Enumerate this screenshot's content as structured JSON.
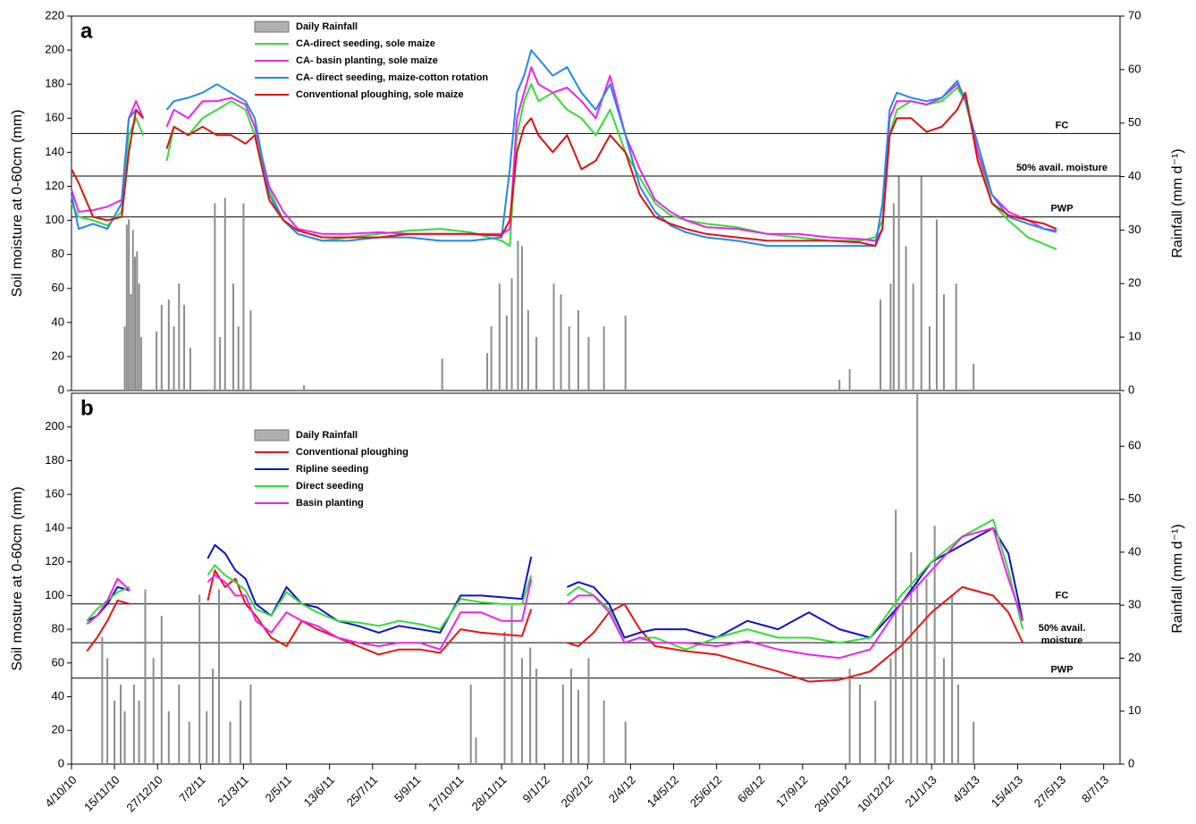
{
  "chart_data": [
    {
      "type": "line",
      "panel_label": "a",
      "ylabel": "Soil moisture at 0-60cm (mm)",
      "y2label": "Rainfall (mm d⁻¹)",
      "xlim": [
        0,
        1024
      ],
      "ylim": [
        0,
        220
      ],
      "yticks": [
        0,
        20,
        40,
        60,
        80,
        100,
        120,
        140,
        160,
        180,
        200,
        220
      ],
      "y2lim": [
        0,
        70
      ],
      "y2ticks": [
        0,
        10,
        20,
        30,
        40,
        50,
        60,
        70
      ],
      "hlines": [
        {
          "value": 151,
          "label": "FC"
        },
        {
          "value": 126,
          "label": "50% avail. moisture"
        },
        {
          "value": 102,
          "label": "PWP"
        }
      ],
      "x": [
        0,
        7,
        21,
        35,
        49,
        56,
        63,
        70,
        82,
        93,
        100,
        114,
        128,
        142,
        156,
        170,
        179,
        193,
        207,
        221,
        245,
        270,
        300,
        330,
        360,
        390,
        420,
        428,
        435,
        442,
        449,
        456,
        470,
        484,
        498,
        512,
        526,
        541,
        555,
        570,
        585,
        600,
        620,
        650,
        680,
        710,
        740,
        770,
        785,
        792,
        799,
        806,
        820,
        835,
        850,
        865,
        873,
        885,
        899,
        915,
        934,
        950,
        962
      ],
      "series": [
        {
          "name": "Daily Rainfall",
          "type": "bar",
          "axis": "y2",
          "color": "#8c8c8c",
          "x": [
            52,
            54,
            56,
            58,
            60,
            62,
            64,
            66,
            68,
            83,
            88,
            95,
            100,
            105,
            110,
            116,
            140,
            145,
            150,
            158,
            163,
            168,
            175,
            227,
            362,
            406,
            410,
            418,
            425,
            430,
            436,
            440,
            446,
            454,
            471,
            478,
            486,
            495,
            505,
            520,
            541,
            750,
            760,
            790,
            800,
            803,
            808,
            815,
            822,
            830,
            838,
            845,
            852,
            864,
            881
          ],
          "values": [
            12,
            31,
            32,
            18,
            30,
            25,
            26,
            20,
            10,
            11,
            16,
            17,
            12,
            20,
            16,
            8,
            35,
            10,
            36,
            20,
            12,
            35,
            15,
            1,
            6,
            7,
            12,
            20,
            14,
            21,
            28,
            27,
            15,
            10,
            20,
            18,
            12,
            15,
            10,
            12,
            14,
            2,
            4,
            17,
            20,
            35,
            40,
            27,
            20,
            40,
            12,
            32,
            18,
            20,
            5
          ]
        },
        {
          "name": "CA-direct seeding, sole maize",
          "color": "#33dd33",
          "values": [
            110,
            102,
            100,
            97,
            105,
            150,
            160,
            150,
            null,
            135,
            155,
            150,
            160,
            165,
            170,
            165,
            150,
            118,
            100,
            92,
            88,
            90,
            92,
            94,
            95,
            93,
            88,
            85,
            150,
            170,
            180,
            170,
            175,
            165,
            160,
            150,
            165,
            140,
            125,
            110,
            103,
            100,
            98,
            96,
            92,
            90,
            88,
            88,
            90,
            100,
            150,
            165,
            170,
            168,
            170,
            178,
            170,
            140,
            110,
            100,
            90,
            86,
            83
          ]
        },
        {
          "name": "CA- basin planting, sole maize",
          "color": "#ee22ee",
          "values": [
            118,
            105,
            106,
            108,
            112,
            160,
            170,
            160,
            null,
            155,
            165,
            160,
            170,
            170,
            172,
            168,
            155,
            120,
            105,
            95,
            92,
            92,
            93,
            92,
            92,
            92,
            92,
            95,
            160,
            175,
            190,
            180,
            175,
            178,
            170,
            160,
            185,
            150,
            130,
            112,
            105,
            100,
            96,
            95,
            92,
            92,
            90,
            89,
            88,
            95,
            160,
            170,
            170,
            168,
            172,
            180,
            172,
            140,
            115,
            105,
            100,
            95,
            94
          ]
        },
        {
          "name": "CA- direct seeding, maize-cotton rotation",
          "color": "#2288ee",
          "values": [
            115,
            95,
            98,
            95,
            110,
            160,
            165,
            160,
            null,
            165,
            170,
            172,
            175,
            180,
            175,
            170,
            160,
            115,
            100,
            92,
            88,
            88,
            90,
            90,
            88,
            88,
            90,
            130,
            175,
            185,
            200,
            195,
            185,
            190,
            175,
            165,
            180,
            150,
            120,
            105,
            97,
            93,
            90,
            88,
            85,
            85,
            85,
            85,
            85,
            110,
            165,
            175,
            172,
            170,
            172,
            182,
            170,
            145,
            115,
            102,
            98,
            95,
            93
          ]
        },
        {
          "name": "Conventional ploughing, sole maize",
          "color": "#dd1111",
          "values": [
            130,
            122,
            102,
            100,
            102,
            140,
            165,
            160,
            null,
            142,
            155,
            150,
            155,
            150,
            150,
            145,
            150,
            112,
            100,
            94,
            90,
            90,
            90,
            92,
            92,
            92,
            91,
            100,
            140,
            155,
            160,
            150,
            140,
            150,
            130,
            135,
            150,
            140,
            115,
            102,
            98,
            95,
            92,
            90,
            88,
            88,
            88,
            87,
            85,
            95,
            150,
            160,
            160,
            152,
            155,
            165,
            175,
            135,
            110,
            103,
            100,
            98,
            95
          ]
        }
      ]
    },
    {
      "type": "line",
      "panel_label": "b",
      "ylabel": "Soil mosture at 0-60cm (mm)",
      "y2label": "Rainfall (mm d⁻¹)",
      "xlim": [
        0,
        1024
      ],
      "ylim": [
        0,
        220
      ],
      "yticks": [
        0,
        20,
        40,
        60,
        80,
        100,
        120,
        140,
        160,
        180,
        200
      ],
      "y2lim": [
        0,
        70
      ],
      "y2ticks": [
        0,
        10,
        20,
        30,
        40,
        50,
        60
      ],
      "xticks": [
        {
          "value": 0,
          "label": "4/10/10"
        },
        {
          "value": 42,
          "label": "15/11/10"
        },
        {
          "value": 84,
          "label": "27/12/10"
        },
        {
          "value": 126,
          "label": "7/2/11"
        },
        {
          "value": 168,
          "label": "21/3/11"
        },
        {
          "value": 210,
          "label": "2/5/11"
        },
        {
          "value": 252,
          "label": "13/6/11"
        },
        {
          "value": 294,
          "label": "25/7/11"
        },
        {
          "value": 336,
          "label": "5/9/11"
        },
        {
          "value": 378,
          "label": "17/10/11"
        },
        {
          "value": 420,
          "label": "28/11/11"
        },
        {
          "value": 462,
          "label": "9/1/12"
        },
        {
          "value": 504,
          "label": "20/2/12"
        },
        {
          "value": 546,
          "label": "2/4/12"
        },
        {
          "value": 588,
          "label": "14/5/12"
        },
        {
          "value": 630,
          "label": "25/6/12"
        },
        {
          "value": 672,
          "label": "6/8/12"
        },
        {
          "value": 714,
          "label": "17/9/12"
        },
        {
          "value": 756,
          "label": "29/10/12"
        },
        {
          "value": 798,
          "label": "10/12/12"
        },
        {
          "value": 840,
          "label": "21/1/13"
        },
        {
          "value": 882,
          "label": "4/3/13"
        },
        {
          "value": 924,
          "label": "15/4/13"
        },
        {
          "value": 966,
          "label": "27/5/13"
        },
        {
          "value": 1008,
          "label": "8/7/13"
        }
      ],
      "hlines": [
        {
          "value": 95,
          "label": "FC"
        },
        {
          "value": 72,
          "label": [
            "50% avail.",
            "moisture"
          ]
        },
        {
          "value": 51,
          "label": "PWP"
        }
      ],
      "x": [
        15,
        25,
        35,
        45,
        57,
        95,
        133,
        140,
        150,
        160,
        170,
        180,
        195,
        210,
        225,
        240,
        260,
        280,
        300,
        320,
        340,
        360,
        380,
        400,
        420,
        440,
        449,
        466,
        484,
        495,
        510,
        525,
        540,
        555,
        570,
        600,
        630,
        660,
        690,
        720,
        750,
        780,
        810,
        840,
        870,
        900,
        915,
        929
      ],
      "series": [
        {
          "name": "Daily Rainfall",
          "type": "bar",
          "axis": "y2",
          "color": "#8c8c8c",
          "x": [
            30,
            35,
            42,
            48,
            52,
            61,
            66,
            72,
            80,
            88,
            95,
            105,
            115,
            125,
            132,
            138,
            144,
            155,
            165,
            175,
            390,
            395,
            423,
            430,
            440,
            448,
            454,
            480,
            488,
            495,
            505,
            520,
            541,
            760,
            770,
            785,
            800,
            805,
            812,
            820,
            826,
            835,
            843,
            852,
            860,
            866,
            881
          ],
          "values": [
            24,
            20,
            12,
            15,
            10,
            15,
            12,
            33,
            20,
            28,
            10,
            15,
            8,
            32,
            10,
            18,
            33,
            8,
            12,
            15,
            15,
            5,
            25,
            30,
            20,
            22,
            18,
            15,
            18,
            14,
            20,
            12,
            8,
            18,
            15,
            12,
            20,
            48,
            30,
            40,
            70,
            35,
            45,
            20,
            32,
            15,
            8
          ]
        },
        {
          "name": "Conventional ploughing",
          "color": "#ee1111",
          "values": [
            67,
            75,
            85,
            97,
            95,
            null,
            97,
            115,
            105,
            110,
            95,
            88,
            75,
            70,
            85,
            80,
            75,
            70,
            65,
            68,
            68,
            66,
            80,
            78,
            77,
            76,
            92,
            null,
            72,
            70,
            78,
            90,
            95,
            80,
            70,
            67,
            65,
            60,
            55,
            49,
            50,
            55,
            70,
            90,
            105,
            100,
            90,
            72
          ]
        },
        {
          "name": "Ripline seeding",
          "color": "#1010cc",
          "values": [
            85,
            88,
            95,
            105,
            103,
            null,
            122,
            130,
            125,
            115,
            110,
            95,
            88,
            105,
            95,
            93,
            85,
            82,
            78,
            82,
            80,
            78,
            100,
            100,
            99,
            98,
            123,
            null,
            105,
            108,
            105,
            95,
            75,
            78,
            80,
            80,
            75,
            85,
            80,
            90,
            80,
            75,
            95,
            120,
            130,
            140,
            125,
            85
          ]
        },
        {
          "name": "Direct seeding",
          "color": "#33dd33",
          "values": [
            85,
            92,
            97,
            102,
            105,
            null,
            112,
            118,
            112,
            108,
            103,
            92,
            88,
            102,
            95,
            90,
            85,
            84,
            82,
            85,
            83,
            80,
            98,
            96,
            95,
            95,
            112,
            null,
            100,
            105,
            100,
            92,
            72,
            75,
            75,
            68,
            75,
            80,
            75,
            75,
            72,
            75,
            100,
            120,
            135,
            145,
            115,
            80
          ]
        },
        {
          "name": "Basin planting",
          "color": "#ee22ee",
          "values": [
            83,
            88,
            97,
            110,
            103,
            null,
            108,
            112,
            108,
            100,
            100,
            85,
            78,
            90,
            85,
            82,
            75,
            72,
            70,
            72,
            72,
            68,
            90,
            90,
            85,
            85,
            110,
            null,
            95,
            100,
            100,
            90,
            72,
            75,
            72,
            72,
            70,
            73,
            68,
            65,
            63,
            68,
            95,
            115,
            135,
            140,
            110,
            85
          ]
        }
      ]
    }
  ]
}
